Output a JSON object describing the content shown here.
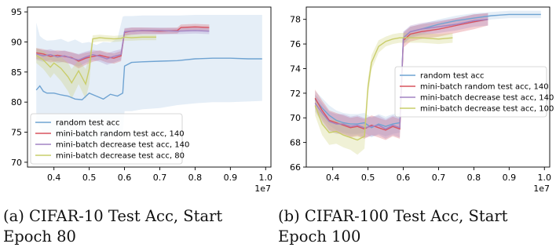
{
  "chart_data": [
    {
      "type": "line",
      "title": "",
      "xlabel": "",
      "ylabel": "",
      "x_scale_label": "1e7",
      "xlim": [
        0.325,
        1.015
      ],
      "ylim": [
        69.2,
        95.8
      ],
      "xticks": [
        0.4,
        0.5,
        0.6,
        0.7,
        0.8,
        0.9,
        1.0
      ],
      "xtick_labels": [
        "0.4",
        "0.5",
        "0.6",
        "0.7",
        "0.8",
        "0.9",
        "1.0"
      ],
      "yticks": [
        70,
        75,
        80,
        85,
        90,
        95
      ],
      "ytick_labels": [
        "70",
        "75",
        "80",
        "85",
        "90",
        "95"
      ],
      "grid": false,
      "legend_position": "lower-left",
      "series": [
        {
          "name": "random test acc",
          "color": "#6fa3d2",
          "x": [
            0.35,
            0.36,
            0.37,
            0.38,
            0.4,
            0.42,
            0.44,
            0.46,
            0.48,
            0.5,
            0.52,
            0.54,
            0.56,
            0.58,
            0.595,
            0.6,
            0.62,
            0.65,
            0.7,
            0.75,
            0.8,
            0.85,
            0.9,
            0.95,
            0.99
          ],
          "y": [
            82,
            82.7,
            81.8,
            81.5,
            81.5,
            81.2,
            81.0,
            80.5,
            80.4,
            81.5,
            81.0,
            80.5,
            81.3,
            81.0,
            81.5,
            86.0,
            86.6,
            86.7,
            86.8,
            86.9,
            87.2,
            87.3,
            87.3,
            87.2,
            87.2
          ],
          "band_upper": [
            93.2,
            91.0,
            90.5,
            90.2,
            90.3,
            90.5,
            90.0,
            90.4,
            89.8,
            90.0,
            89.5,
            90.0,
            89.9,
            90.6,
            94.2,
            94.3,
            94.3,
            94.4,
            94.4,
            94.4,
            94.5,
            94.5,
            94.5,
            94.5,
            94.5
          ],
          "band_lower": [
            77.0,
            75.8,
            75.0,
            74.5,
            75.5,
            74.0,
            73.5,
            72.8,
            72.5,
            73.0,
            73.5,
            73.8,
            74.5,
            74.5,
            75.0,
            78.5,
            78.5,
            78.8,
            79.0,
            79.5,
            79.8,
            80.0,
            80.0,
            80.1,
            80.2
          ]
        },
        {
          "name": "mini-batch random test acc, 140",
          "color": "#d9535f",
          "x": [
            0.35,
            0.37,
            0.39,
            0.41,
            0.43,
            0.45,
            0.47,
            0.49,
            0.51,
            0.53,
            0.55,
            0.57,
            0.59,
            0.6,
            0.62,
            0.65,
            0.7,
            0.75,
            0.76,
            0.8,
            0.84
          ],
          "y": [
            88.2,
            88.0,
            87.6,
            87.8,
            87.6,
            87.4,
            86.8,
            87.3,
            87.6,
            87.8,
            87.5,
            87.3,
            87.7,
            91.6,
            91.8,
            91.9,
            91.8,
            91.9,
            92.4,
            92.5,
            92.4
          ],
          "band_upper": [
            89.0,
            88.8,
            88.5,
            88.6,
            88.5,
            88.3,
            87.9,
            88.2,
            88.4,
            88.6,
            88.3,
            88.1,
            88.5,
            92.2,
            92.4,
            92.4,
            92.3,
            92.4,
            92.9,
            93.0,
            92.9
          ],
          "band_lower": [
            87.2,
            87.0,
            86.6,
            86.8,
            86.6,
            86.3,
            85.6,
            86.2,
            86.7,
            87.0,
            86.6,
            86.4,
            86.8,
            91.0,
            91.2,
            91.3,
            91.3,
            91.4,
            91.9,
            92.0,
            91.9
          ]
        },
        {
          "name": "mini-batch decrease test acc, 140",
          "color": "#a283c3",
          "x": [
            0.35,
            0.37,
            0.39,
            0.41,
            0.43,
            0.45,
            0.47,
            0.49,
            0.51,
            0.53,
            0.55,
            0.57,
            0.59,
            0.6,
            0.62,
            0.65,
            0.7,
            0.75,
            0.8,
            0.84
          ],
          "y": [
            88.0,
            87.7,
            87.9,
            87.5,
            87.7,
            87.3,
            87.0,
            87.5,
            87.9,
            87.6,
            87.2,
            87.6,
            87.9,
            91.7,
            91.8,
            91.9,
            91.9,
            91.8,
            91.9,
            91.8
          ],
          "band_upper": [
            88.9,
            88.6,
            88.8,
            88.4,
            88.6,
            88.2,
            88.0,
            88.4,
            88.7,
            88.5,
            88.1,
            88.5,
            88.8,
            92.3,
            92.4,
            92.4,
            92.4,
            92.3,
            92.4,
            92.3
          ],
          "band_lower": [
            87.0,
            86.7,
            87.0,
            86.5,
            86.7,
            86.3,
            85.9,
            86.5,
            87.0,
            86.7,
            86.2,
            86.6,
            87.0,
            91.1,
            91.2,
            91.3,
            91.3,
            91.3,
            91.4,
            91.3
          ]
        },
        {
          "name": "mini-batch decrease test acc, 80",
          "color": "#c9cd6a",
          "x": [
            0.35,
            0.37,
            0.39,
            0.4,
            0.42,
            0.44,
            0.45,
            0.47,
            0.49,
            0.5,
            0.51,
            0.53,
            0.55,
            0.57,
            0.59,
            0.6,
            0.62,
            0.65,
            0.69
          ],
          "y": [
            87.8,
            87.0,
            85.8,
            86.5,
            85.6,
            84.2,
            83.2,
            85.2,
            83.0,
            85.5,
            90.5,
            90.7,
            90.6,
            90.5,
            90.6,
            90.8,
            90.7,
            90.8,
            90.8
          ],
          "band_upper": [
            89.0,
            88.5,
            87.8,
            88.0,
            87.5,
            86.5,
            85.5,
            87.0,
            85.5,
            87.5,
            91.1,
            91.2,
            91.1,
            91.0,
            91.1,
            91.3,
            91.2,
            91.2,
            91.2
          ],
          "band_lower": [
            86.5,
            85.5,
            84.0,
            84.8,
            83.5,
            81.8,
            80.5,
            83.0,
            80.5,
            83.0,
            89.9,
            90.1,
            90.1,
            90.0,
            90.1,
            90.2,
            90.2,
            90.3,
            90.3
          ]
        }
      ]
    },
    {
      "type": "line",
      "title": "",
      "xlabel": "",
      "ylabel": "",
      "x_scale_label": "1e7",
      "xlim": [
        0.325,
        1.015
      ],
      "ylim": [
        66.0,
        79.0
      ],
      "xticks": [
        0.4,
        0.5,
        0.6,
        0.7,
        0.8,
        0.9,
        1.0
      ],
      "xtick_labels": [
        "0.4",
        "0.5",
        "0.6",
        "0.7",
        "0.8",
        "0.9",
        "1.0"
      ],
      "yticks": [
        66,
        68,
        70,
        72,
        74,
        76,
        78
      ],
      "ytick_labels": [
        "66",
        "68",
        "70",
        "72",
        "74",
        "76",
        "78"
      ],
      "grid": false,
      "legend_position": "center-right",
      "series": [
        {
          "name": "random test acc",
          "color": "#6fa3d2",
          "x": [
            0.35,
            0.37,
            0.39,
            0.41,
            0.43,
            0.45,
            0.47,
            0.49,
            0.51,
            0.53,
            0.55,
            0.57,
            0.59,
            0.6,
            0.62,
            0.65,
            0.7,
            0.75,
            0.8,
            0.85,
            0.9,
            0.95,
            0.99
          ],
          "y": [
            71.5,
            70.8,
            70.2,
            69.8,
            69.6,
            69.5,
            69.5,
            69.6,
            69.2,
            69.5,
            69.3,
            69.5,
            69.6,
            76.5,
            77.0,
            77.2,
            77.6,
            77.9,
            78.1,
            78.3,
            78.4,
            78.4,
            78.4
          ],
          "band_upper": [
            72.2,
            71.6,
            71.0,
            70.6,
            70.4,
            70.3,
            70.3,
            70.4,
            70.0,
            70.3,
            70.1,
            70.3,
            70.4,
            77.0,
            77.4,
            77.6,
            78.0,
            78.3,
            78.5,
            78.6,
            78.7,
            78.7,
            78.7
          ],
          "band_lower": [
            70.8,
            70.0,
            69.4,
            69.0,
            68.8,
            68.7,
            68.7,
            68.8,
            68.4,
            68.7,
            68.5,
            68.7,
            68.8,
            76.0,
            76.6,
            76.8,
            77.2,
            77.5,
            77.7,
            78.0,
            78.1,
            78.1,
            78.1
          ]
        },
        {
          "name": "mini-batch random test acc, 140",
          "color": "#d9535f",
          "x": [
            0.35,
            0.37,
            0.39,
            0.41,
            0.43,
            0.45,
            0.47,
            0.49,
            0.51,
            0.53,
            0.55,
            0.57,
            0.59,
            0.6,
            0.62,
            0.65,
            0.7,
            0.75,
            0.8,
            0.84
          ],
          "y": [
            71.6,
            70.6,
            69.8,
            69.6,
            69.4,
            69.2,
            69.3,
            69.1,
            69.4,
            69.2,
            69.0,
            69.3,
            69.1,
            76.3,
            76.8,
            77.0,
            77.2,
            77.5,
            77.8,
            78.0
          ],
          "band_upper": [
            72.3,
            71.4,
            70.6,
            70.4,
            70.2,
            70.0,
            70.1,
            69.9,
            70.2,
            70.0,
            69.8,
            70.1,
            69.9,
            76.9,
            77.4,
            77.6,
            77.8,
            78.1,
            78.4,
            78.5
          ],
          "band_lower": [
            70.9,
            69.8,
            69.0,
            68.8,
            68.6,
            68.4,
            68.5,
            68.3,
            68.6,
            68.4,
            68.2,
            68.5,
            68.3,
            75.7,
            76.2,
            76.4,
            76.6,
            76.9,
            77.2,
            77.5
          ]
        },
        {
          "name": "mini-batch decrease test acc, 140",
          "color": "#a283c3",
          "x": [
            0.35,
            0.37,
            0.39,
            0.41,
            0.43,
            0.45,
            0.47,
            0.49,
            0.51,
            0.53,
            0.55,
            0.57,
            0.59,
            0.6,
            0.62,
            0.65,
            0.7,
            0.75,
            0.8,
            0.84
          ],
          "y": [
            71.2,
            70.4,
            69.7,
            69.5,
            69.5,
            69.3,
            69.4,
            69.2,
            69.3,
            69.4,
            69.1,
            69.4,
            69.2,
            76.5,
            77.0,
            77.2,
            77.4,
            77.6,
            77.9,
            78.0
          ],
          "band_upper": [
            71.9,
            71.2,
            70.5,
            70.3,
            70.3,
            70.1,
            70.2,
            70.0,
            70.1,
            70.2,
            69.9,
            70.2,
            70.0,
            77.0,
            77.5,
            77.7,
            77.9,
            78.1,
            78.4,
            78.5
          ],
          "band_lower": [
            70.5,
            69.6,
            68.9,
            68.7,
            68.7,
            68.5,
            68.6,
            68.4,
            68.5,
            68.6,
            68.3,
            68.6,
            68.4,
            76.0,
            76.5,
            76.7,
            76.9,
            77.1,
            77.4,
            77.5
          ]
        },
        {
          "name": "mini-batch decrease test acc, 100",
          "color": "#c9cd6a",
          "x": [
            0.35,
            0.37,
            0.39,
            0.41,
            0.43,
            0.45,
            0.47,
            0.49,
            0.5,
            0.51,
            0.53,
            0.55,
            0.57,
            0.59,
            0.6,
            0.62,
            0.65,
            0.7,
            0.74
          ],
          "y": [
            71.0,
            69.5,
            68.8,
            68.9,
            68.6,
            68.4,
            68.2,
            68.5,
            72.5,
            74.5,
            75.8,
            76.2,
            76.4,
            76.5,
            76.5,
            76.5,
            76.5,
            76.4,
            76.5
          ],
          "band_upper": [
            71.8,
            70.4,
            69.8,
            69.9,
            69.6,
            69.4,
            69.2,
            69.5,
            73.2,
            75.1,
            76.3,
            76.6,
            76.8,
            76.9,
            76.9,
            76.9,
            76.9,
            76.8,
            76.9
          ],
          "band_lower": [
            70.2,
            68.6,
            67.8,
            67.9,
            67.6,
            67.4,
            67.0,
            67.5,
            71.8,
            73.9,
            75.3,
            75.8,
            76.0,
            76.1,
            76.1,
            76.1,
            76.1,
            76.0,
            76.1
          ]
        }
      ]
    }
  ],
  "captions": {
    "a": {
      "line1": "(a) CIFAR-10 Test Acc, Start",
      "line2": "Epoch 80"
    },
    "b": {
      "line1": "(b) CIFAR-100 Test Acc, Start",
      "line2": "Epoch 100"
    }
  }
}
